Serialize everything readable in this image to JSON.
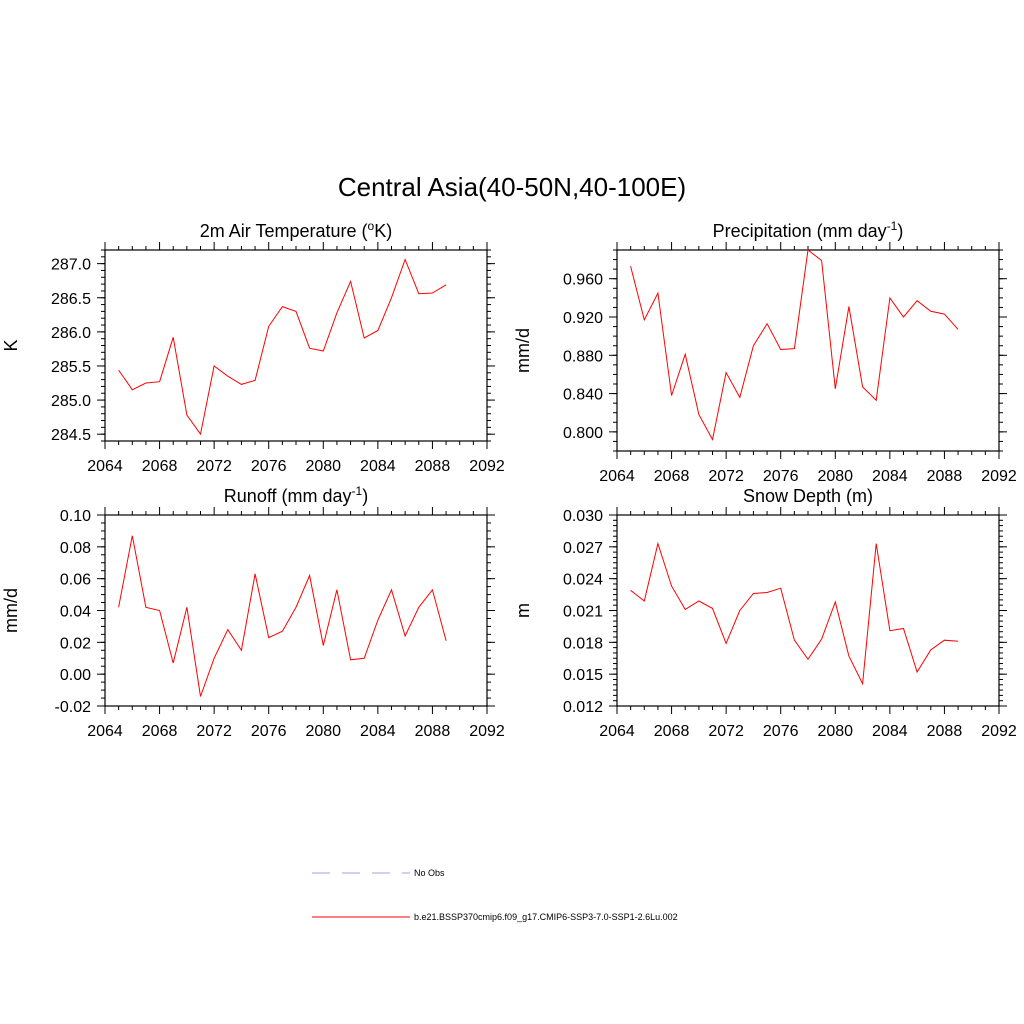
{
  "title": "Central Asia(40-50N,40-100E)",
  "colors": {
    "series": "#ff0000",
    "obs": "#b3b3e6",
    "axis": "#000000"
  },
  "legend": [
    {
      "label": "No Obs",
      "style": "dashed",
      "color": "#b3b3e6"
    },
    {
      "label": "b.e21.BSSP370cmip6.f09_g17.CMIP6-SSP3-7.0-SSP1-2.6Lu.002",
      "style": "solid",
      "color": "#ff0000"
    }
  ],
  "chart_data": [
    {
      "type": "line",
      "title_main": "2m Air Temperature (",
      "title_sup": "o",
      "title_rest": "K)",
      "ylabel": "K",
      "xlim": [
        2064,
        2092
      ],
      "ylim": [
        284.4,
        287.2
      ],
      "xticks": [
        2064,
        2068,
        2072,
        2076,
        2080,
        2084,
        2088,
        2092
      ],
      "yticks": [
        284.5,
        285.0,
        285.5,
        286.0,
        286.5,
        287.0
      ],
      "ytick_labels": [
        "284.5",
        "285.0",
        "285.5",
        "286.0",
        "286.5",
        "287.0"
      ],
      "ytick_minor": 0.1,
      "x": [
        2065,
        2066,
        2067,
        2068,
        2069,
        2070,
        2071,
        2072,
        2073,
        2074,
        2075,
        2076,
        2077,
        2078,
        2079,
        2080,
        2081,
        2082,
        2083,
        2084,
        2085,
        2086,
        2087,
        2088,
        2089
      ],
      "y": [
        285.44,
        285.15,
        285.25,
        285.27,
        285.92,
        284.78,
        284.5,
        285.5,
        285.35,
        285.23,
        285.29,
        286.08,
        286.37,
        286.3,
        285.76,
        285.72,
        286.28,
        286.74,
        285.91,
        286.02,
        286.5,
        287.06,
        286.56,
        286.57,
        286.69
      ]
    },
    {
      "type": "line",
      "title_main": "Precipitation (mm day",
      "title_sup": "-1",
      "title_rest": ")",
      "ylabel": "mm/d",
      "xlim": [
        2064,
        2092
      ],
      "ylim": [
        0.78,
        0.99
      ],
      "xticks": [
        2064,
        2068,
        2072,
        2076,
        2080,
        2084,
        2088,
        2092
      ],
      "yticks": [
        0.8,
        0.84,
        0.88,
        0.92,
        0.96
      ],
      "ytick_labels": [
        "0.800",
        "0.840",
        "0.880",
        "0.920",
        "0.960"
      ],
      "ytick_minor": 0.01,
      "x": [
        2065,
        2066,
        2067,
        2068,
        2069,
        2070,
        2071,
        2072,
        2073,
        2074,
        2075,
        2076,
        2077,
        2078,
        2079,
        2080,
        2081,
        2082,
        2083,
        2084,
        2085,
        2086,
        2087,
        2088,
        2089
      ],
      "y": [
        0.973,
        0.917,
        0.945,
        0.838,
        0.881,
        0.818,
        0.792,
        0.862,
        0.836,
        0.89,
        0.913,
        0.886,
        0.887,
        0.99,
        0.979,
        0.845,
        0.931,
        0.847,
        0.833,
        0.94,
        0.92,
        0.937,
        0.926,
        0.923,
        0.907
      ]
    },
    {
      "type": "line",
      "title_main": "Runoff (mm day",
      "title_sup": "-1",
      "title_rest": ")",
      "ylabel": "mm/d",
      "xlim": [
        2064,
        2092
      ],
      "ylim": [
        -0.02,
        0.1
      ],
      "xticks": [
        2064,
        2068,
        2072,
        2076,
        2080,
        2084,
        2088,
        2092
      ],
      "yticks": [
        -0.02,
        0.0,
        0.02,
        0.04,
        0.06,
        0.08,
        0.1
      ],
      "ytick_labels": [
        "-0.02",
        "0.00",
        "0.02",
        "0.04",
        "0.06",
        "0.08",
        "0.10"
      ],
      "ytick_minor": 0.005,
      "x": [
        2065,
        2066,
        2067,
        2068,
        2069,
        2070,
        2071,
        2072,
        2073,
        2074,
        2075,
        2076,
        2077,
        2078,
        2079,
        2080,
        2081,
        2082,
        2083,
        2084,
        2085,
        2086,
        2087,
        2088,
        2089
      ],
      "y": [
        0.042,
        0.087,
        0.042,
        0.04,
        0.007,
        0.042,
        -0.014,
        0.01,
        0.028,
        0.015,
        0.063,
        0.023,
        0.027,
        0.042,
        0.062,
        0.018,
        0.053,
        0.009,
        0.01,
        0.034,
        0.053,
        0.024,
        0.042,
        0.053,
        0.021
      ]
    },
    {
      "type": "line",
      "title_main": "Snow Depth (m)",
      "title_sup": "",
      "title_rest": "",
      "ylabel": "m",
      "xlim": [
        2064,
        2092
      ],
      "ylim": [
        0.012,
        0.03
      ],
      "xticks": [
        2064,
        2068,
        2072,
        2076,
        2080,
        2084,
        2088,
        2092
      ],
      "yticks": [
        0.012,
        0.015,
        0.018,
        0.021,
        0.024,
        0.027,
        0.03
      ],
      "ytick_labels": [
        "0.012",
        "0.015",
        "0.018",
        "0.021",
        "0.024",
        "0.027",
        "0.030"
      ],
      "ytick_minor": 0.0005,
      "x": [
        2065,
        2066,
        2067,
        2068,
        2069,
        2070,
        2071,
        2072,
        2073,
        2074,
        2075,
        2076,
        2077,
        2078,
        2079,
        2080,
        2081,
        2082,
        2083,
        2084,
        2085,
        2086,
        2087,
        2088,
        2089
      ],
      "y": [
        0.0229,
        0.0219,
        0.0273,
        0.0233,
        0.0211,
        0.0219,
        0.0212,
        0.0179,
        0.021,
        0.0226,
        0.0227,
        0.0231,
        0.0182,
        0.0164,
        0.0183,
        0.0218,
        0.0167,
        0.0141,
        0.0273,
        0.0191,
        0.0193,
        0.0152,
        0.0173,
        0.0182,
        0.0181
      ]
    }
  ]
}
